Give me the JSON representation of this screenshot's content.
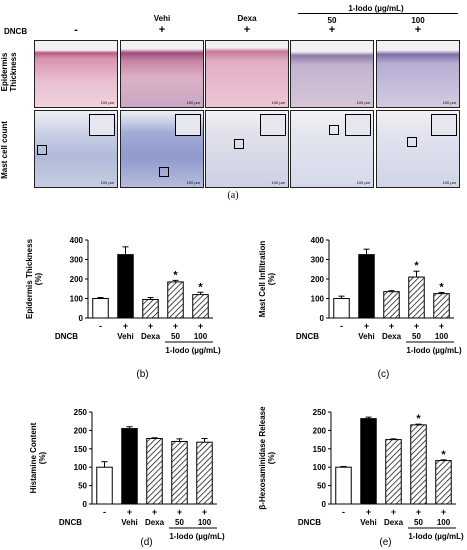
{
  "figure_a": {
    "dncb_label": "DNCB",
    "columns": [
      {
        "name": "",
        "dncb": "-"
      },
      {
        "name": "Vehi",
        "dncb": "+"
      },
      {
        "name": "Dexa",
        "dncb": "+"
      },
      {
        "name": "50",
        "dncb": "+"
      },
      {
        "name": "100",
        "dncb": "+"
      }
    ],
    "group_label": "1-Iodo (µg/mL)",
    "row_labels": [
      "Epidermis Thickness",
      "Mast cell count"
    ],
    "scale_bar": "100 µm",
    "caption": "(a)"
  },
  "chart_data": [
    {
      "type": "bar",
      "caption": "(b)",
      "ylabel": "Epidermis Thickness (%)",
      "yticks": [
        "0",
        "100",
        "200",
        "300",
        "400"
      ],
      "ylim": [
        0,
        400
      ],
      "categories": [
        "-",
        "Vehi",
        "Dexa",
        "50",
        "100"
      ],
      "dncb": [
        "-",
        "+",
        "+",
        "+",
        "+"
      ],
      "values": [
        100,
        325,
        95,
        185,
        120
      ],
      "errors": [
        5,
        40,
        10,
        8,
        12
      ],
      "significance": [
        "",
        "",
        "",
        "*",
        "*"
      ],
      "dncb_label": "DNCB",
      "group_label": "1-Iodo (µg/mL)"
    },
    {
      "type": "bar",
      "caption": "(c)",
      "ylabel": "Mast Cell Infiltration (%)",
      "yticks": [
        "0",
        "100",
        "200",
        "300",
        "400"
      ],
      "ylim": [
        0,
        400
      ],
      "categories": [
        "-",
        "Vehi",
        "Dexa",
        "50",
        "100"
      ],
      "dncb": [
        "-",
        "+",
        "+",
        "+",
        "+"
      ],
      "values": [
        100,
        325,
        135,
        210,
        125
      ],
      "errors": [
        12,
        28,
        5,
        30,
        6
      ],
      "significance": [
        "",
        "",
        "",
        "*",
        "*"
      ],
      "dncb_label": "DNCB",
      "group_label": "1-Iodo (µg/mL)"
    },
    {
      "type": "bar",
      "caption": "(d)",
      "ylabel": "Histamine Content (%)",
      "yticks": [
        "0",
        "50",
        "100",
        "150",
        "200",
        "250"
      ],
      "ylim": [
        0,
        250
      ],
      "categories": [
        "-",
        "Vehi",
        "Dexa",
        "50",
        "100"
      ],
      "dncb": [
        "-",
        "+",
        "+",
        "+",
        "+"
      ],
      "values": [
        100,
        205,
        178,
        170,
        168
      ],
      "errors": [
        15,
        5,
        2,
        7,
        10
      ],
      "significance": [
        "",
        "",
        "",
        "",
        ""
      ],
      "dncb_label": "DNCB",
      "group_label": "1-Iodo (µg/mL)"
    },
    {
      "type": "bar",
      "caption": "(e)",
      "ylabel": "β-Hexosaminidase Release (%)",
      "yticks": [
        "0",
        "50",
        "100",
        "150",
        "200",
        "250"
      ],
      "ylim": [
        0,
        250
      ],
      "categories": [
        "-",
        "Vehi",
        "Dexa",
        "50",
        "100"
      ],
      "dncb": [
        "-",
        "+",
        "+",
        "+",
        "+"
      ],
      "values": [
        100,
        232,
        175,
        215,
        118
      ],
      "errors": [
        2,
        4,
        2,
        2,
        2
      ],
      "significance": [
        "",
        "",
        "",
        "*",
        "*"
      ],
      "dncb_label": "DNCB",
      "group_label": "1-Iodo (µg/mL)"
    }
  ],
  "colors": {
    "he_stain": "#d9a0b8",
    "toluidine_stain": "#a9b3d8",
    "bar_vehi": "#000000",
    "bar_control": "#ffffff"
  }
}
